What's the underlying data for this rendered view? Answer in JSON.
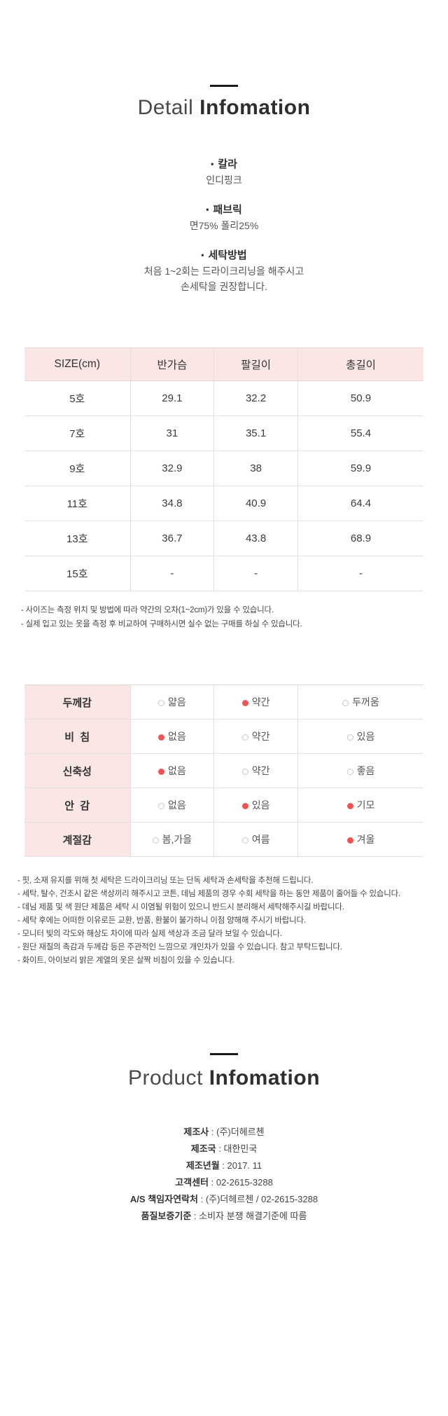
{
  "detail": {
    "title_light": "Detail",
    "title_bold": "Infomation",
    "sections": [
      {
        "label": "칼라",
        "line1": "인디핑크",
        "line2": ""
      },
      {
        "label": "패브릭",
        "line1": "면75% 폴리25%",
        "line2": ""
      },
      {
        "label": "세탁방법",
        "line1": "처음 1~2회는 드라이크리닝을 해주시고",
        "line2": "손세탁을 권장합니다."
      }
    ]
  },
  "size_table": {
    "headers": [
      "SIZE(cm)",
      "반가슴",
      "팔길이",
      "총길이"
    ],
    "rows": [
      [
        "5호",
        "29.1",
        "32.2",
        "50.9"
      ],
      [
        "7호",
        "31",
        "35.1",
        "55.4"
      ],
      [
        "9호",
        "32.9",
        "38",
        "59.9"
      ],
      [
        "11호",
        "34.8",
        "40.9",
        "64.4"
      ],
      [
        "13호",
        "36.7",
        "43.8",
        "68.9"
      ],
      [
        "15호",
        "-",
        "-",
        "-"
      ]
    ]
  },
  "size_notes": [
    "- 사이즈는 측정 위치 및 방법에 따라 약간의 오차(1~2cm)가 있을 수 있습니다.",
    "- 실제 입고 있는 옷을 측정 후 비교하여 구매하시면 실수 없는 구매를 하실 수 있습니다."
  ],
  "attribute_table": {
    "rows": [
      {
        "label": "두께감",
        "options": [
          {
            "text": "얇음",
            "selected": false
          },
          {
            "text": "약간",
            "selected": true
          },
          {
            "text": "두꺼움",
            "selected": false
          }
        ]
      },
      {
        "label": "비  침",
        "options": [
          {
            "text": "없음",
            "selected": true
          },
          {
            "text": "약간",
            "selected": false
          },
          {
            "text": "있음",
            "selected": false
          }
        ]
      },
      {
        "label": "신축성",
        "options": [
          {
            "text": "없음",
            "selected": true
          },
          {
            "text": "약간",
            "selected": false
          },
          {
            "text": "좋음",
            "selected": false
          }
        ]
      },
      {
        "label": "안  감",
        "options": [
          {
            "text": "없음",
            "selected": false
          },
          {
            "text": "있음",
            "selected": true
          },
          {
            "text": "기모",
            "selected": true
          }
        ]
      },
      {
        "label": "계절감",
        "options": [
          {
            "text": "봄,가을",
            "selected": false
          },
          {
            "text": "여름",
            "selected": false
          },
          {
            "text": "겨울",
            "selected": true
          }
        ]
      }
    ]
  },
  "care_notes": [
    "- 핏, 소재 유지를 위해 첫 세탁은 드라이크리닝 또는 단독 세탁과 손세탁을 추천해 드립니다.",
    "- 세탁, 탈수, 건조시 같은 색상끼리 해주시고 코튼, 데님 제품의 경우 수회 세탁을 하는 동안 제품이 줄어들 수 있습니다.",
    "- 데님 제품 및 색 원단 제품은 세탁 시 이염될 위험이 있으니 반드시 분리해서 세탁해주시길 바랍니다.",
    "- 세탁 후에는 어떠한 이유로든 교환, 반품, 환불이 불가하니 이점 양해해 주시기 바랍니다.",
    "- 모니터 빛의 각도와 해상도 차이에 따라 실제 색상과 조금 달라 보일 수 있습니다.",
    "- 원단 재질의 촉감과 두께감 등은 주관적인 느낌으로 개인차가 있을 수 있습니다. 참고 부탁드립니다.",
    "- 화이트, 아이보리 밝은 계열의 옷은 살짝 비침이 있을 수 있습니다."
  ],
  "product": {
    "title_light": "Product",
    "title_bold": "Infomation",
    "items": [
      {
        "label": "제조사",
        "value": "(주)더헤르첸"
      },
      {
        "label": "제조국",
        "value": "대한민국"
      },
      {
        "label": "제조년월",
        "value": "2017. 11"
      },
      {
        "label": "고객센터",
        "value": "02-2615-3288"
      },
      {
        "label": "A/S 책임자연락처",
        "value": "(주)더헤르첸 / 02-2615-3288"
      },
      {
        "label": "품질보증기준",
        "value": "소비자 분쟁 해결기준에 따름"
      }
    ],
    "separator": " : "
  },
  "colors": {
    "accent_red": "#f15354",
    "header_pink": "#fbe6e6",
    "divider_black": "#1a1a1a"
  }
}
